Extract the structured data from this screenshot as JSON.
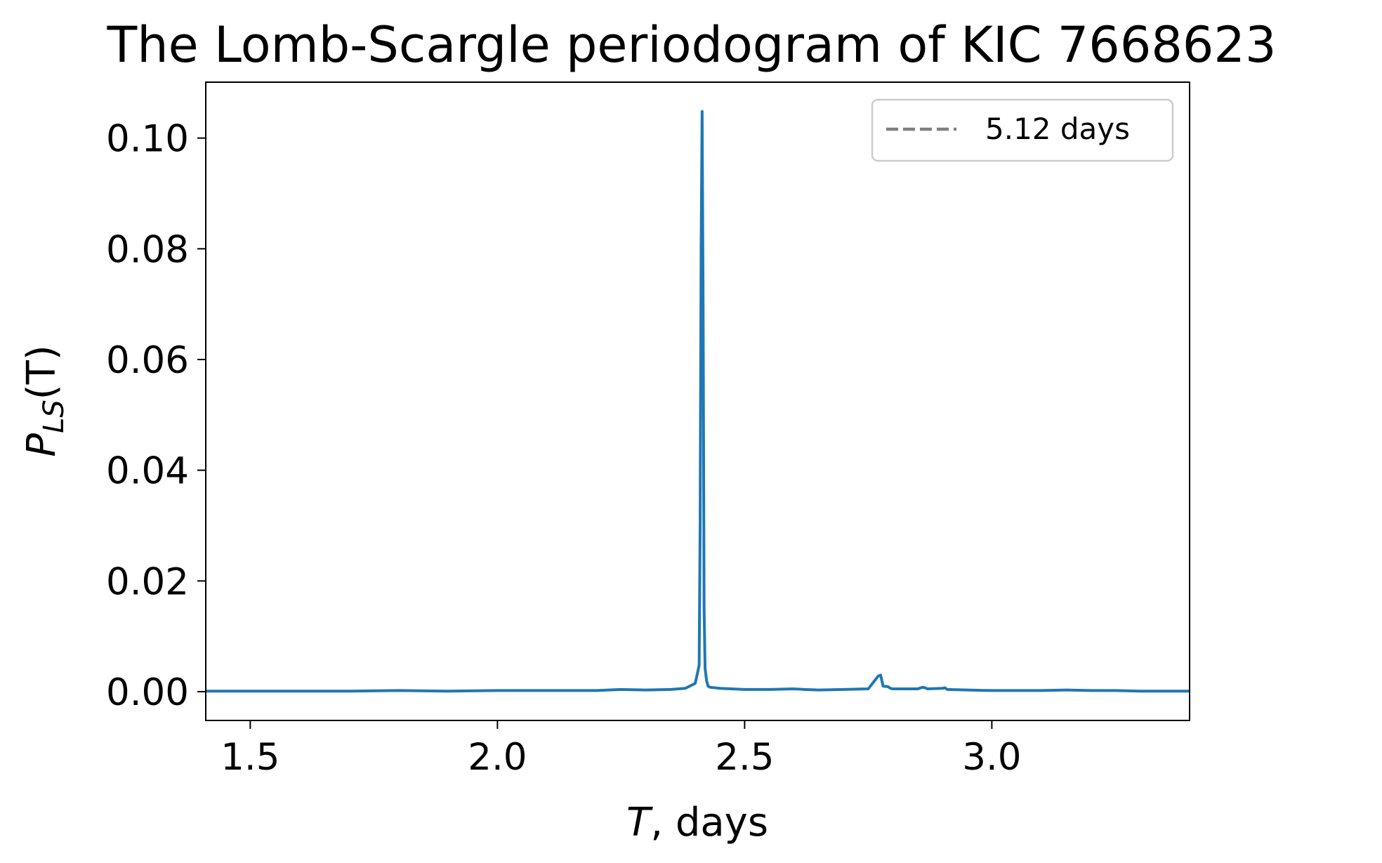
{
  "chart_data": {
    "type": "line",
    "title": "The Lomb-Scargle periodogram of KIC 7668623",
    "xlabel_italic": "T",
    "xlabel_rest": ", days",
    "ylabel_main": "P",
    "ylabel_sub": "LS",
    "ylabel_rest": "(T)",
    "xlim": [
      1.41,
      3.4
    ],
    "ylim": [
      -0.0052,
      0.1101
    ],
    "xticks": [
      1.5,
      2.0,
      2.5,
      3.0
    ],
    "xtick_labels": [
      "1.5",
      "2.0",
      "2.5",
      "3.0"
    ],
    "yticks": [
      0.0,
      0.02,
      0.04,
      0.06,
      0.08,
      0.1
    ],
    "ytick_labels": [
      "0.00",
      "0.02",
      "0.04",
      "0.06",
      "0.08",
      "0.10"
    ],
    "grid": false,
    "legend_position": "top-right",
    "legend": [
      {
        "label": "5.12 days",
        "style": "dashed",
        "color": "#808080"
      }
    ],
    "series": [
      {
        "color": "#1f77b4",
        "x": [
          1.41,
          1.5,
          1.6,
          1.7,
          1.8,
          1.9,
          2.0,
          2.1,
          2.2,
          2.25,
          2.3,
          2.35,
          2.38,
          2.4,
          2.405,
          2.408,
          2.41,
          2.412,
          2.414,
          2.416,
          2.418,
          2.42,
          2.423,
          2.426,
          2.43,
          2.45,
          2.5,
          2.55,
          2.6,
          2.62,
          2.65,
          2.7,
          2.75,
          2.77,
          2.775,
          2.78,
          2.79,
          2.795,
          2.8,
          2.85,
          2.86,
          2.865,
          2.87,
          2.9,
          2.905,
          2.91,
          2.95,
          3.0,
          3.05,
          3.1,
          3.15,
          3.2,
          3.25,
          3.3,
          3.35,
          3.4
        ],
        "y": [
          0.0001,
          0.0001,
          0.0001,
          0.0001,
          0.0002,
          0.0001,
          0.0002,
          0.0002,
          0.0002,
          0.0004,
          0.0003,
          0.0004,
          0.0006,
          0.0015,
          0.0035,
          0.0048,
          0.03,
          0.08,
          0.1048,
          0.07,
          0.015,
          0.0042,
          0.002,
          0.001,
          0.0008,
          0.0006,
          0.0004,
          0.0004,
          0.0005,
          0.0004,
          0.0003,
          0.0004,
          0.0005,
          0.0028,
          0.003,
          0.001,
          0.0009,
          0.0006,
          0.0005,
          0.0005,
          0.0008,
          0.0007,
          0.0005,
          0.0006,
          0.0007,
          0.0004,
          0.0003,
          0.0002,
          0.0002,
          0.0002,
          0.0003,
          0.0002,
          0.0002,
          0.0001,
          0.0001,
          0.0001
        ]
      }
    ]
  }
}
